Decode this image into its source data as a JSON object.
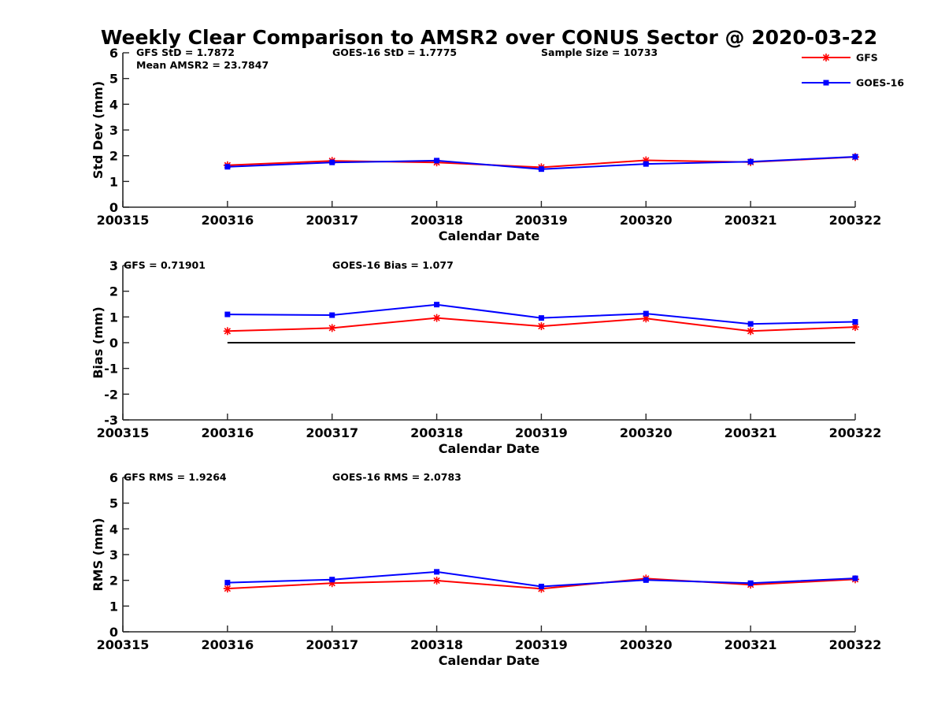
{
  "chart_data": {
    "type": "line",
    "title": "Weekly Clear Comparison to AMSR2 over CONUS Sector @ 2020-03-22",
    "legend": {
      "placement": "top-right",
      "entries": [
        {
          "name": "GFS",
          "color": "#ff0000",
          "marker": "asterisk"
        },
        {
          "name": "GOES-16",
          "color": "#0000ff",
          "marker": "square"
        }
      ]
    },
    "panels": [
      {
        "id": "std",
        "xlabel": "Calendar Date",
        "ylabel": "Std Dev (mm)",
        "xlim": [
          200315,
          200322
        ],
        "ylim": [
          0,
          6
        ],
        "xticks": [
          "200315",
          "200316",
          "200317",
          "200318",
          "200319",
          "200320",
          "200321",
          "200322"
        ],
        "yticks": [
          "0",
          "1",
          "2",
          "3",
          "4",
          "5",
          "6"
        ],
        "x": [
          200316,
          200317,
          200318,
          200319,
          200320,
          200321,
          200322
        ],
        "series": [
          {
            "name": "GFS",
            "color": "#ff0000",
            "values": [
              1.63,
              1.8,
              1.74,
              1.55,
              1.82,
              1.75,
              1.95
            ]
          },
          {
            "name": "GOES-16",
            "color": "#0000ff",
            "values": [
              1.57,
              1.74,
              1.81,
              1.48,
              1.68,
              1.77,
              1.96
            ]
          }
        ],
        "annotations": [
          {
            "text": "GFS StD = 1.7872",
            "col": 0,
            "row": 0
          },
          {
            "text": "Mean AMSR2 = 23.7847",
            "col": 0,
            "row": 1
          },
          {
            "text": "GOES-16 StD = 1.7775",
            "col": 1,
            "row": 0
          },
          {
            "text": "Sample Size = 10733",
            "col": 2,
            "row": 0
          }
        ],
        "zero_line": false
      },
      {
        "id": "bias",
        "xlabel": "Calendar Date",
        "ylabel": "Bias (mm)",
        "xlim": [
          200315,
          200322
        ],
        "ylim": [
          -3,
          3
        ],
        "xticks": [
          "200315",
          "200316",
          "200317",
          "200318",
          "200319",
          "200320",
          "200321",
          "200322"
        ],
        "yticks": [
          "-3",
          "-2",
          "-1",
          "0",
          "1",
          "2",
          "3"
        ],
        "x": [
          200316,
          200317,
          200318,
          200319,
          200320,
          200321,
          200322
        ],
        "series": [
          {
            "name": "GFS",
            "color": "#ff0000",
            "values": [
              0.45,
              0.57,
              0.96,
              0.64,
              0.94,
              0.45,
              0.61
            ]
          },
          {
            "name": "GOES-16",
            "color": "#0000ff",
            "values": [
              1.1,
              1.07,
              1.48,
              0.96,
              1.13,
              0.73,
              0.81
            ]
          }
        ],
        "annotations": [
          {
            "text": "GFS = 0.71901",
            "col": 0,
            "row": 0
          },
          {
            "text": "GOES-16 Bias  = 1.077",
            "col": 1,
            "row": 0
          }
        ],
        "zero_line": true
      },
      {
        "id": "rms",
        "xlabel": "Calendar Date",
        "ylabel": "RMS (mm)",
        "xlim": [
          200315,
          200322
        ],
        "ylim": [
          0,
          6
        ],
        "xticks": [
          "200315",
          "200316",
          "200317",
          "200318",
          "200319",
          "200320",
          "200321",
          "200322"
        ],
        "yticks": [
          "0",
          "1",
          "2",
          "3",
          "4",
          "5",
          "6"
        ],
        "x": [
          200316,
          200317,
          200318,
          200319,
          200320,
          200321,
          200322
        ],
        "series": [
          {
            "name": "GFS",
            "color": "#ff0000",
            "values": [
              1.68,
              1.89,
              1.99,
              1.67,
              2.07,
              1.83,
              2.04
            ]
          },
          {
            "name": "GOES-16",
            "color": "#0000ff",
            "values": [
              1.91,
              2.03,
              2.33,
              1.76,
              2.01,
              1.89,
              2.08
            ]
          }
        ],
        "annotations": [
          {
            "text": "GFS RMS = 1.9264",
            "col": 0,
            "row": 0
          },
          {
            "text": "GOES-16 RMS = 2.0783",
            "col": 1,
            "row": 0
          }
        ],
        "zero_line": false
      }
    ]
  }
}
